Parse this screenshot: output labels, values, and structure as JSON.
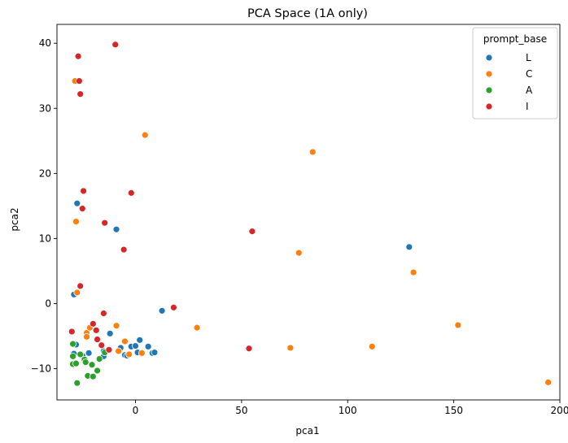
{
  "chart_data": {
    "type": "scatter",
    "title": "PCA Space (1A only)",
    "xlabel": "pca1",
    "ylabel": "pca2",
    "xlim": [
      -37,
      200
    ],
    "ylim": [
      -14.8,
      42.9
    ],
    "xticks": [
      0,
      50,
      100,
      150,
      200
    ],
    "yticks": [
      -10,
      0,
      10,
      20,
      30,
      40
    ],
    "legend": {
      "title": "prompt_base",
      "placement": "top-right"
    },
    "grid": false,
    "series": [
      {
        "name": "L",
        "color": "#1f77b4",
        "points": [
          [
            -29,
            1.4
          ],
          [
            -27.5,
            15.4
          ],
          [
            -9,
            11.4
          ],
          [
            -28,
            -6.3
          ],
          [
            -29,
            -7.7
          ],
          [
            -25,
            -8.0
          ],
          [
            -22,
            -7.6
          ],
          [
            -15,
            -8.1
          ],
          [
            -15,
            -7.3
          ],
          [
            -12,
            -4.6
          ],
          [
            -7,
            -6.8
          ],
          [
            -5,
            -7.9
          ],
          [
            -4,
            -8.0
          ],
          [
            -3,
            -7.8
          ],
          [
            -2,
            -6.6
          ],
          [
            0,
            -6.5
          ],
          [
            1,
            -7.5
          ],
          [
            2,
            -5.6
          ],
          [
            6,
            -6.6
          ],
          [
            8,
            -7.6
          ],
          [
            9,
            -7.5
          ],
          [
            12.5,
            -1.1
          ],
          [
            129,
            8.7
          ]
        ]
      },
      {
        "name": "C",
        "color": "#ff7f0e",
        "points": [
          [
            -28.5,
            34.2
          ],
          [
            -28,
            12.6
          ],
          [
            -27.5,
            1.7
          ],
          [
            -23,
            -4.5
          ],
          [
            -23,
            -5.1
          ],
          [
            -21.5,
            -3.7
          ],
          [
            -9,
            -3.4
          ],
          [
            -8,
            -7.3
          ],
          [
            -5,
            -5.8
          ],
          [
            -3,
            -7.8
          ],
          [
            3,
            -7.6
          ],
          [
            4.5,
            25.9
          ],
          [
            29,
            -3.7
          ],
          [
            73,
            -6.8
          ],
          [
            77,
            7.8
          ],
          [
            83.5,
            23.3
          ],
          [
            111.5,
            -6.6
          ],
          [
            131,
            4.8
          ],
          [
            152,
            -3.3
          ],
          [
            194.5,
            -12.1
          ]
        ]
      },
      {
        "name": "A",
        "color": "#2ca02c",
        "points": [
          [
            -29.5,
            -6.2
          ],
          [
            -29.5,
            -8.1
          ],
          [
            -29.5,
            -9.3
          ],
          [
            -28,
            -9.2
          ],
          [
            -27.5,
            -12.2
          ],
          [
            -26,
            -7.8
          ],
          [
            -24,
            -8.6
          ],
          [
            -23.5,
            -9.0
          ],
          [
            -22.5,
            -11.1
          ],
          [
            -20,
            -11.2
          ],
          [
            -20.5,
            -9.4
          ],
          [
            -18,
            -10.3
          ],
          [
            -14.5,
            -7.5
          ],
          [
            -17,
            -8.5
          ]
        ]
      },
      {
        "name": "I",
        "color": "#d62728",
        "points": [
          [
            -27,
            38.0
          ],
          [
            -26.5,
            34.2
          ],
          [
            -26,
            32.2
          ],
          [
            -9.5,
            39.8
          ],
          [
            -24.5,
            17.3
          ],
          [
            -25,
            14.6
          ],
          [
            -2,
            17.0
          ],
          [
            -14.5,
            12.4
          ],
          [
            -5.5,
            8.3
          ],
          [
            -26,
            2.7
          ],
          [
            -30,
            -4.3
          ],
          [
            -20,
            -3.1
          ],
          [
            -18.5,
            -4.1
          ],
          [
            -18,
            -5.5
          ],
          [
            -15,
            -1.5
          ],
          [
            -16,
            -6.4
          ],
          [
            -12.5,
            -7.1
          ],
          [
            18,
            -0.6
          ],
          [
            55,
            11.1
          ],
          [
            53.5,
            -6.9
          ]
        ]
      }
    ]
  }
}
